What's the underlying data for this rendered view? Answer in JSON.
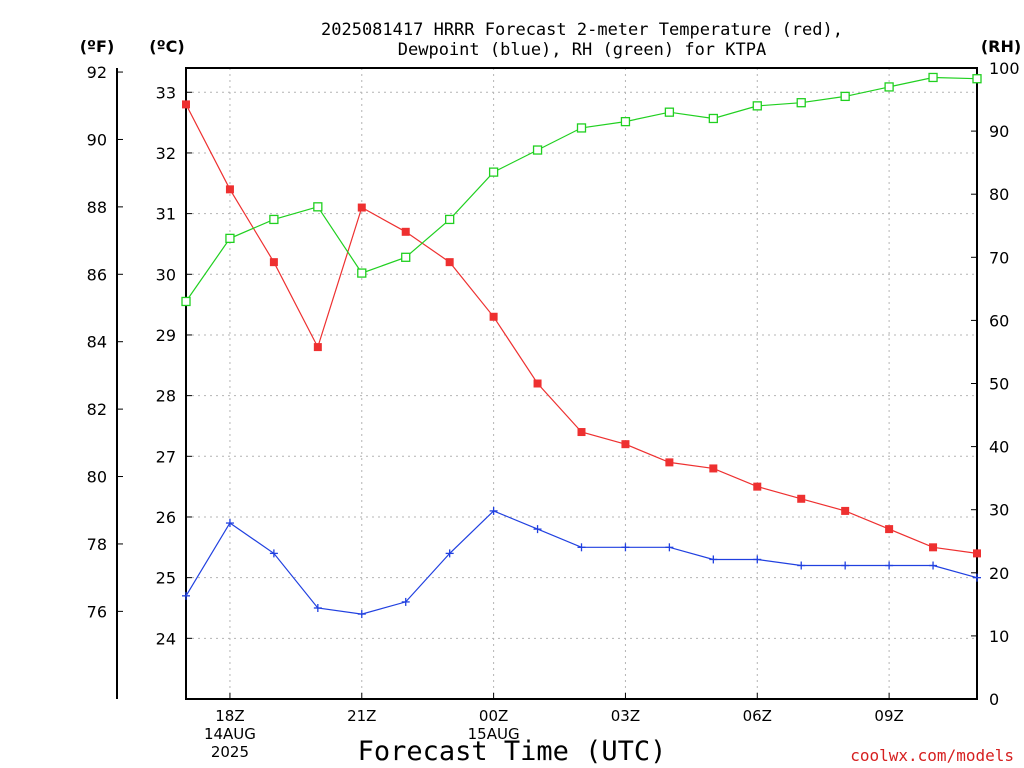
{
  "chart_data": {
    "type": "line",
    "title_lines": [
      "2025081417 HRRR Forecast 2-meter Temperature (red),",
      "Dewpoint (blue), RH (green) for KTPA"
    ],
    "axis_labels": {
      "fahrenheit": "(ºF)",
      "celsius": "(ºC)",
      "rh": "(RH)"
    },
    "xlabel": "Forecast Time (UTC)",
    "credit": "coolwx.com/models",
    "x_hours": [
      17,
      18,
      19,
      20,
      21,
      22,
      23,
      24,
      25,
      26,
      27,
      28,
      29,
      30,
      31,
      32,
      33,
      34,
      35
    ],
    "x_range": [
      17,
      35
    ],
    "x_ticks": [
      {
        "hour": 18,
        "lines": [
          "18Z",
          "14AUG",
          "2025"
        ]
      },
      {
        "hour": 21,
        "lines": [
          "21Z"
        ]
      },
      {
        "hour": 24,
        "lines": [
          "00Z",
          "15AUG"
        ]
      },
      {
        "hour": 27,
        "lines": [
          "03Z"
        ]
      },
      {
        "hour": 30,
        "lines": [
          "06Z"
        ]
      },
      {
        "hour": 33,
        "lines": [
          "09Z"
        ]
      }
    ],
    "x_grid_hours": [
      18,
      21,
      24,
      27,
      30,
      33
    ],
    "celsius_axis": {
      "range": [
        23.0,
        33.4
      ],
      "ticks": [
        24,
        25,
        26,
        27,
        28,
        29,
        30,
        31,
        32,
        33
      ]
    },
    "fahrenheit_axis": {
      "ticks": [
        76,
        78,
        80,
        82,
        84,
        86,
        88,
        90,
        92
      ]
    },
    "rh_axis": {
      "range": [
        0,
        100
      ],
      "ticks": [
        0,
        10,
        20,
        30,
        40,
        50,
        60,
        70,
        80,
        90,
        100
      ]
    },
    "grid": true,
    "series": [
      {
        "axis": "celsius",
        "color": "#ee3030",
        "marker": "filled-square",
        "values": [
          32.8,
          31.4,
          30.2,
          28.8,
          31.1,
          30.7,
          30.2,
          29.3,
          28.2,
          27.4,
          27.2,
          26.9,
          26.8,
          26.5,
          26.3,
          26.1,
          25.8,
          25.5,
          25.4
        ]
      },
      {
        "axis": "celsius",
        "color": "#2040e0",
        "marker": "plus",
        "values": [
          24.7,
          25.9,
          25.4,
          24.5,
          24.4,
          24.6,
          25.4,
          26.1,
          25.8,
          25.5,
          25.5,
          25.5,
          25.3,
          25.3,
          25.2,
          25.2,
          25.2,
          25.2,
          25.0
        ]
      },
      {
        "axis": "rh",
        "color": "#20d020",
        "marker": "open-square",
        "values": [
          63,
          73,
          76,
          78,
          67.5,
          70,
          76,
          83.5,
          87,
          90.5,
          91.5,
          93,
          92,
          94,
          94.5,
          95.5,
          97,
          98.5,
          98.3
        ]
      }
    ]
  }
}
